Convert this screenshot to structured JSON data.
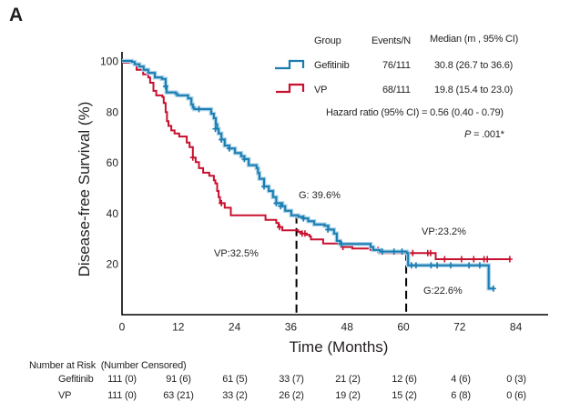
{
  "panel_label": "A",
  "legend": {
    "headers": {
      "group": "Group",
      "events": "Events/N",
      "median": "Median (m , 95% CI)"
    },
    "rows": [
      {
        "group": "Gefitinib",
        "events": "76/111",
        "median": "30.8 (26.7 to 36.6)"
      },
      {
        "group": "VP",
        "events": "68/111",
        "median": "19.8 (15.4 to 23.0)"
      }
    ],
    "hazard_ratio": "Hazard ratio (95% CI) = 0.56 (0.40 - 0.79)",
    "p_label": "P",
    "p_value": " = .001*"
  },
  "chart_data": {
    "type": "line",
    "subtype": "kaplan-meier-step",
    "title": "",
    "xlabel": "Time (Months)",
    "ylabel": "Disease-free Survival (%)",
    "xlim": [
      0,
      90
    ],
    "ylim": [
      0,
      100
    ],
    "xticks": [
      0,
      12,
      24,
      36,
      48,
      60,
      72,
      84
    ],
    "yticks": [
      20,
      40,
      60,
      80,
      100
    ],
    "grid": false,
    "legend_position": "top-right",
    "series": [
      {
        "name": "Gefitinib",
        "color": "#1a7db0",
        "steps": [
          [
            0,
            100
          ],
          [
            2.1,
            99.6
          ],
          [
            2.7,
            98.7
          ],
          [
            3.7,
            97.8
          ],
          [
            4.6,
            96.5
          ],
          [
            5.6,
            95.3
          ],
          [
            7.0,
            93.5
          ],
          [
            8.5,
            92.9
          ],
          [
            9.3,
            90.0
          ],
          [
            9.5,
            87.6
          ],
          [
            11.5,
            87.0
          ],
          [
            11.8,
            86.4
          ],
          [
            14.1,
            85.2
          ],
          [
            14.8,
            82.8
          ],
          [
            15.1,
            81.6
          ],
          [
            15.4,
            81.0
          ],
          [
            19.0,
            79.2
          ],
          [
            19.6,
            77.4
          ],
          [
            20.0,
            75.0
          ],
          [
            20.3,
            73.2
          ],
          [
            20.6,
            71.4
          ],
          [
            21.2,
            69.0
          ],
          [
            21.9,
            66.6
          ],
          [
            22.9,
            65.5
          ],
          [
            24.1,
            63.7
          ],
          [
            25.4,
            62.4
          ],
          [
            26.1,
            61.3
          ],
          [
            27.0,
            58.9
          ],
          [
            28.7,
            57.7
          ],
          [
            29.0,
            55.8
          ],
          [
            29.3,
            53.5
          ],
          [
            30.3,
            50.5
          ],
          [
            31.3,
            48.7
          ],
          [
            32.2,
            46.3
          ],
          [
            32.9,
            43.9
          ],
          [
            34.2,
            42.7
          ],
          [
            34.8,
            40.9
          ],
          [
            36.1,
            39.1
          ],
          [
            37.6,
            38.5
          ],
          [
            38.7,
            37.9
          ],
          [
            39.7,
            36.8
          ],
          [
            41.0,
            35.5
          ],
          [
            43.2,
            35.0
          ],
          [
            44.0,
            33.5
          ],
          [
            45.2,
            31.9
          ],
          [
            45.8,
            29.0
          ],
          [
            46.5,
            27.8
          ],
          [
            53.0,
            26.6
          ],
          [
            53.6,
            25.4
          ],
          [
            55.0,
            24.8
          ],
          [
            60.7,
            24.2
          ],
          [
            61.0,
            19.4
          ],
          [
            78.2,
            10.2
          ],
          [
            79.2,
            10.2
          ]
        ],
        "censored": [
          [
            9.3,
            90.0
          ],
          [
            16.4,
            81.0
          ],
          [
            19.9,
            73.2
          ],
          [
            21.2,
            69.0
          ],
          [
            22.9,
            65.5
          ],
          [
            26.1,
            61.3
          ],
          [
            30.3,
            50.5
          ],
          [
            32.9,
            43.9
          ],
          [
            33.8,
            42.7
          ],
          [
            38.7,
            37.9
          ],
          [
            43.9,
            33.5
          ],
          [
            46.8,
            27.8
          ],
          [
            55.5,
            24.8
          ],
          [
            58.0,
            24.8
          ],
          [
            59.7,
            24.8
          ],
          [
            61.7,
            19.4
          ],
          [
            62.7,
            19.4
          ],
          [
            65.9,
            19.4
          ],
          [
            67.2,
            19.4
          ],
          [
            70.1,
            19.4
          ],
          [
            74.0,
            19.4
          ],
          [
            76.3,
            19.4
          ],
          [
            79.2,
            10.2
          ]
        ]
      },
      {
        "name": "VP",
        "color": "#c8102e",
        "steps": [
          [
            0,
            100
          ],
          [
            0.3,
            99.3
          ],
          [
            2.5,
            98.9
          ],
          [
            3.1,
            96.5
          ],
          [
            4.5,
            94.7
          ],
          [
            5.6,
            93.5
          ],
          [
            6.0,
            91.4
          ],
          [
            6.7,
            88.2
          ],
          [
            7.3,
            86.4
          ],
          [
            8.6,
            85.8
          ],
          [
            8.9,
            83.4
          ],
          [
            9.3,
            79.8
          ],
          [
            9.6,
            76.2
          ],
          [
            9.9,
            74.4
          ],
          [
            10.5,
            72.6
          ],
          [
            11.2,
            71.4
          ],
          [
            12.2,
            70.2
          ],
          [
            13.8,
            67.8
          ],
          [
            14.4,
            66.0
          ],
          [
            15.1,
            61.9
          ],
          [
            15.7,
            60.1
          ],
          [
            16.4,
            57.7
          ],
          [
            17.3,
            55.9
          ],
          [
            18.6,
            54.7
          ],
          [
            19.6,
            52.9
          ],
          [
            19.9,
            51.7
          ],
          [
            20.3,
            48.7
          ],
          [
            20.6,
            46.3
          ],
          [
            20.9,
            43.9
          ],
          [
            21.9,
            42.1
          ],
          [
            23.2,
            39.1
          ],
          [
            30.6,
            37.3
          ],
          [
            32.9,
            36.1
          ],
          [
            33.4,
            34.5
          ],
          [
            34.2,
            33.2
          ],
          [
            37.6,
            32.6
          ],
          [
            38.1,
            31.9
          ],
          [
            39.4,
            31.4
          ],
          [
            40.0,
            30.8
          ],
          [
            40.3,
            29.6
          ],
          [
            42.9,
            28.0
          ],
          [
            47.1,
            26.6
          ],
          [
            49.1,
            26.0
          ],
          [
            53.0,
            25.4
          ],
          [
            54.9,
            24.2
          ],
          [
            66.9,
            21.8
          ],
          [
            82.7,
            21.8
          ]
        ],
        "censored": [
          [
            15.1,
            61.9
          ],
          [
            21.2,
            43.9
          ],
          [
            33.6,
            34.5
          ],
          [
            38.4,
            31.9
          ],
          [
            39.0,
            31.9
          ],
          [
            47.1,
            26.6
          ],
          [
            54.6,
            25.4
          ],
          [
            60.7,
            24.2
          ],
          [
            62.0,
            24.2
          ],
          [
            65.2,
            24.2
          ],
          [
            65.8,
            24.2
          ],
          [
            68.8,
            21.8
          ],
          [
            72.4,
            21.8
          ],
          [
            75.0,
            21.8
          ],
          [
            77.2,
            21.8
          ],
          [
            77.9,
            21.8
          ],
          [
            82.7,
            21.8
          ]
        ]
      }
    ],
    "reference_lines": [
      {
        "x": 37.2,
        "to_y": 39.1,
        "style": "dashed"
      },
      {
        "x": 60.6,
        "to_y": 24.4,
        "style": "dashed"
      }
    ],
    "annotations": {
      "g_36": "G: 39.6%",
      "vp_36": "VP:32.5%",
      "vp_60": "VP:23.2%",
      "g_60": "G:22.6%"
    }
  },
  "risk_table": {
    "title": "Number at Risk  (Number Censored)",
    "rows": [
      {
        "group": "Gefitinib",
        "values": [
          "111 (0)",
          "91 (6)",
          "61 (5)",
          "33 (7)",
          "21 (2)",
          "12 (6)",
          "4 (6)",
          "0 (3)"
        ]
      },
      {
        "group": "VP",
        "values": [
          "111 (0)",
          "63 (21)",
          "33 (2)",
          "26 (2)",
          "19 (2)",
          "15 (2)",
          "6 (8)",
          "0 (6)"
        ]
      }
    ]
  }
}
